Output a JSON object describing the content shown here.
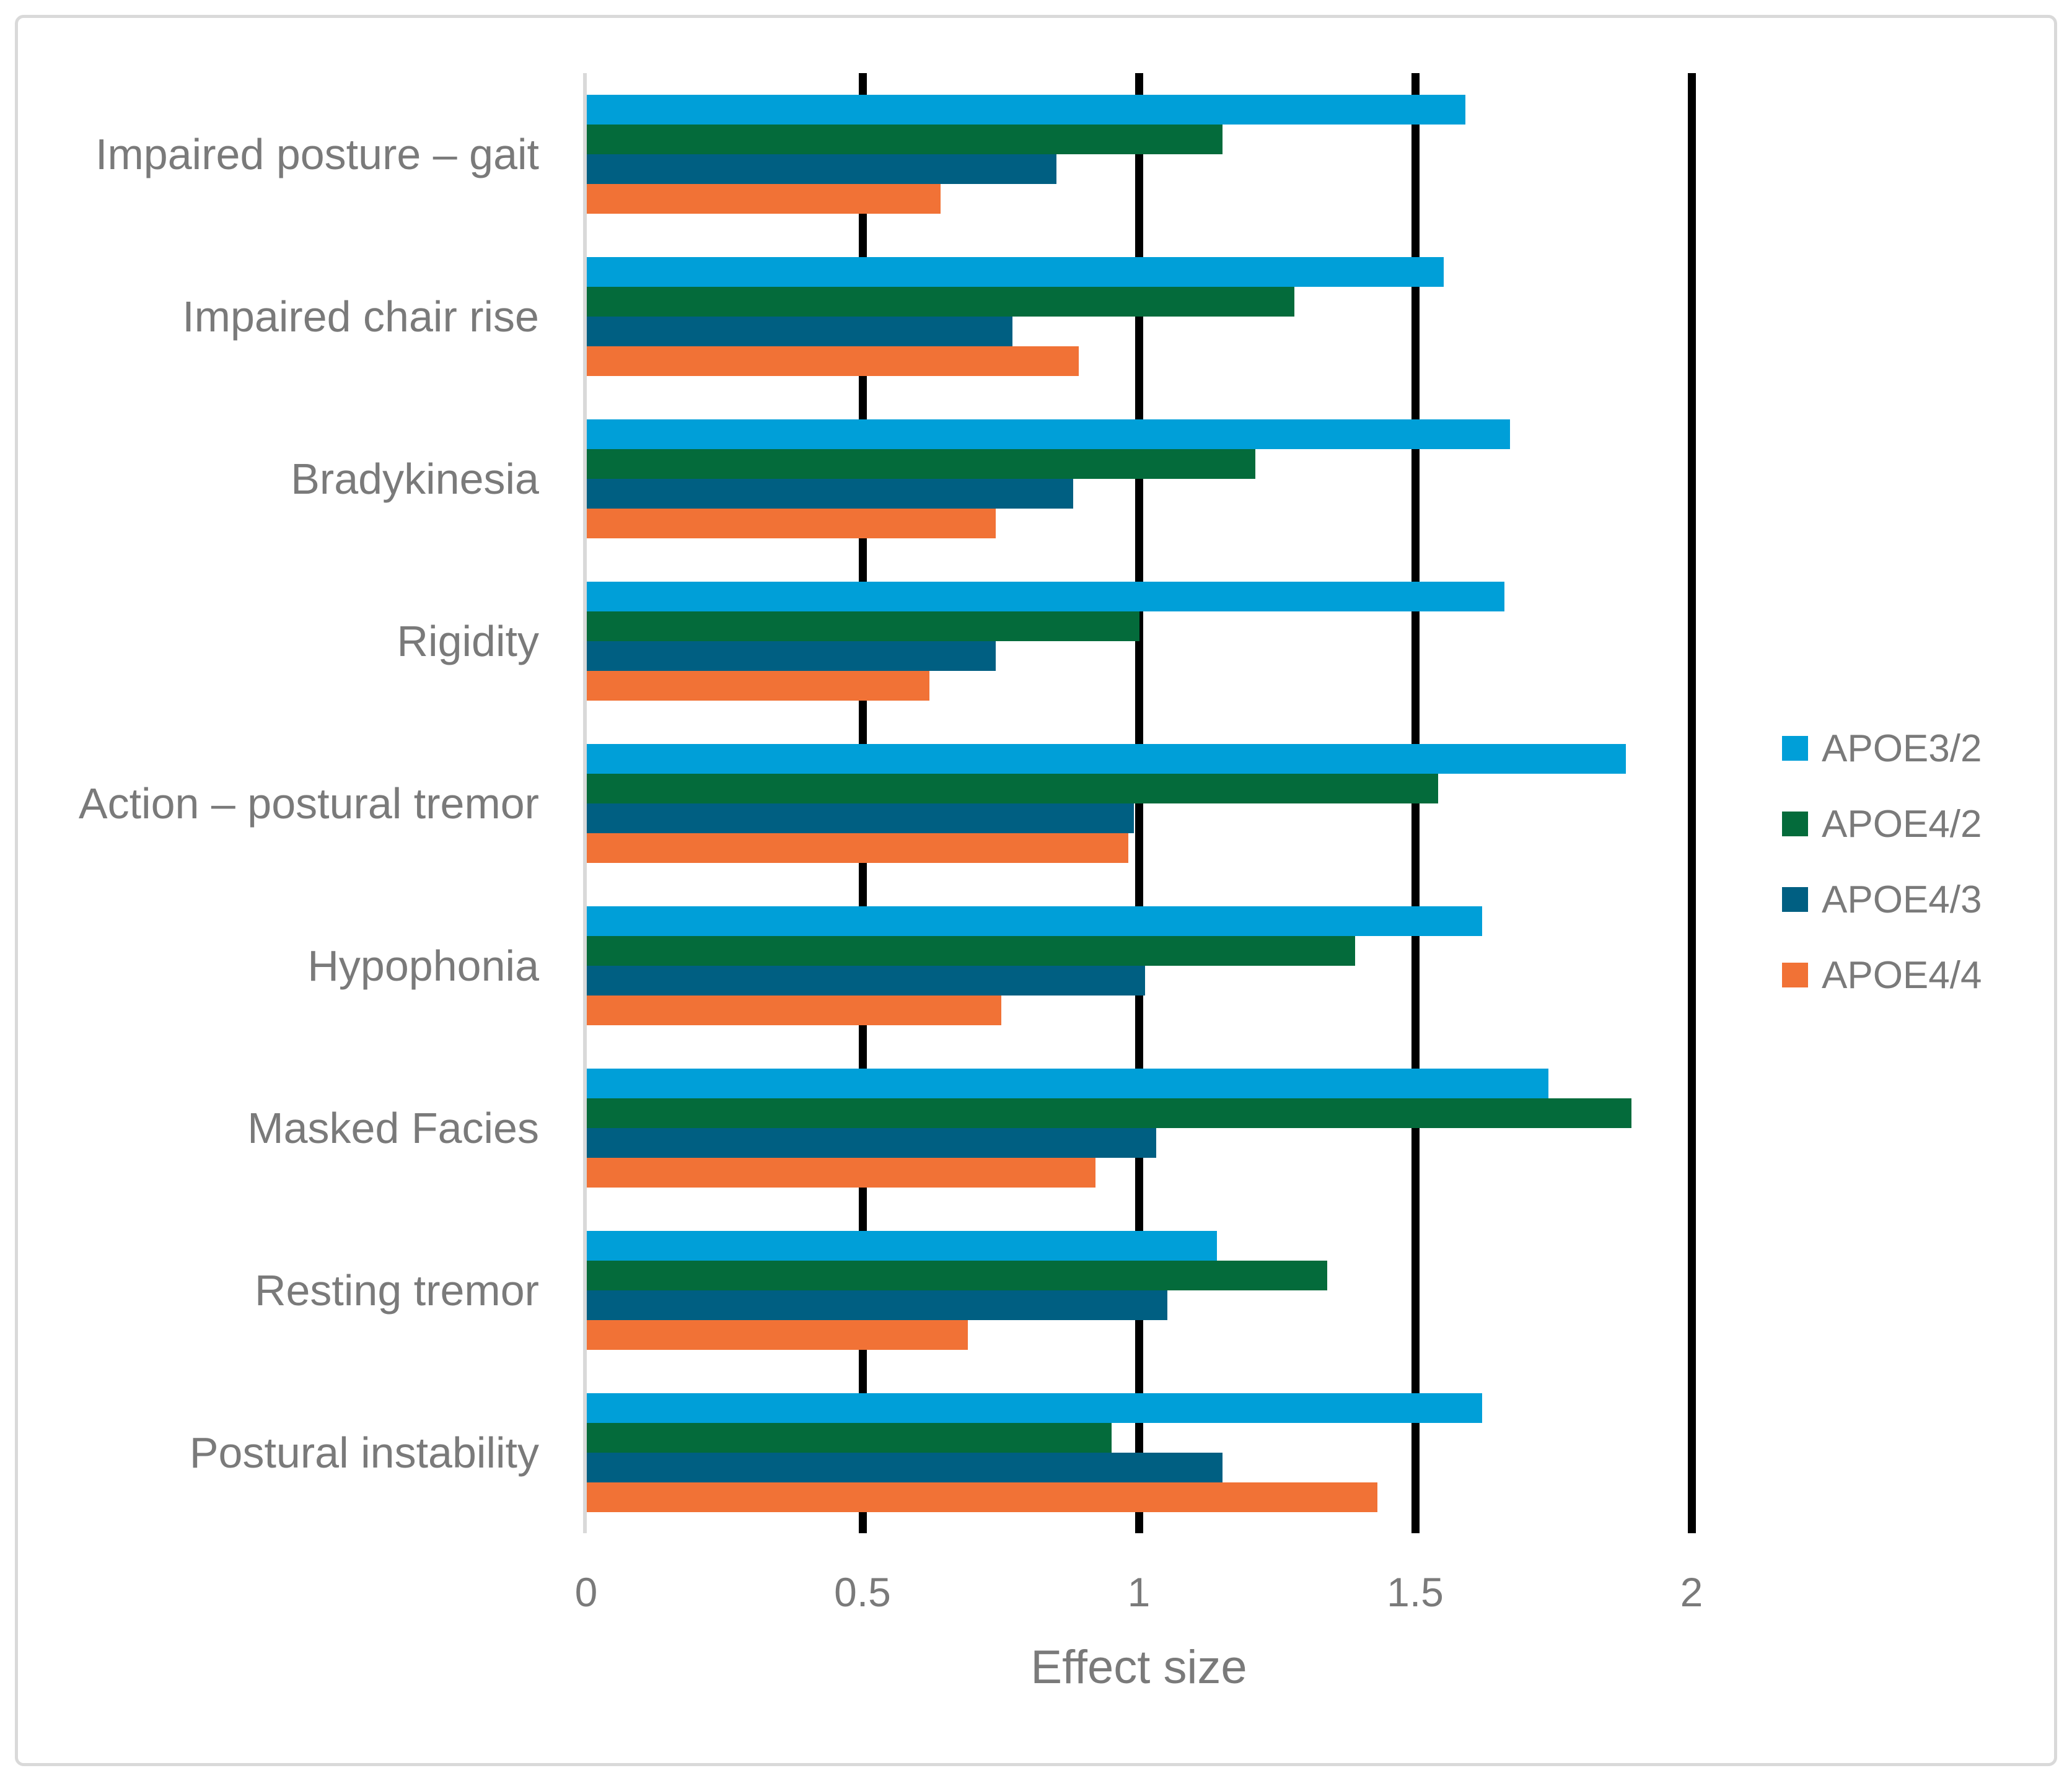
{
  "figure": {
    "background": "#FFFFFF",
    "border_color": "#D9D9D9"
  },
  "colors": {
    "text_gray": "#7A7A7A",
    "gridline_black": "#000000",
    "zero_axis_gray": "#D9D9D9"
  },
  "chart_data": {
    "type": "bar",
    "orientation": "horizontal",
    "title": "",
    "xlabel": "Effect size",
    "ylabel": "",
    "xlim": [
      0,
      2.06
    ],
    "x_ticks": [
      0,
      0.5,
      1,
      1.5,
      2
    ],
    "x_tick_labels": [
      "0",
      "0.5",
      "1",
      "1.5",
      "2"
    ],
    "grid": "vertical black gridlines at 0.5, 1, 1.5, 2; light gray axis line at 0",
    "legend_position": "right",
    "categories": [
      "Impaired posture – gait",
      "Impaired chair rise",
      "Bradykinesia",
      "Rigidity",
      "Action – postural tremor",
      "Hypophonia",
      "Masked Facies",
      "Resting tremor",
      "Postural instability"
    ],
    "series": [
      {
        "name": "APOE3/2",
        "color": "#009FD8",
        "values": [
          1.59,
          1.55,
          1.67,
          1.66,
          1.88,
          1.62,
          1.74,
          1.14,
          1.62
        ]
      },
      {
        "name": "APOE4/2",
        "color": "#046B3B",
        "values": [
          1.15,
          1.28,
          1.21,
          1.0,
          1.54,
          1.39,
          1.89,
          1.34,
          0.95
        ]
      },
      {
        "name": "APOE4/3",
        "color": "#005F82",
        "values": [
          0.85,
          0.77,
          0.88,
          0.74,
          0.99,
          1.01,
          1.03,
          1.05,
          1.15
        ]
      },
      {
        "name": "APOE4/4",
        "color": "#F17236",
        "values": [
          0.64,
          0.89,
          0.74,
          0.62,
          0.98,
          0.75,
          0.92,
          0.69,
          1.43
        ]
      }
    ]
  }
}
